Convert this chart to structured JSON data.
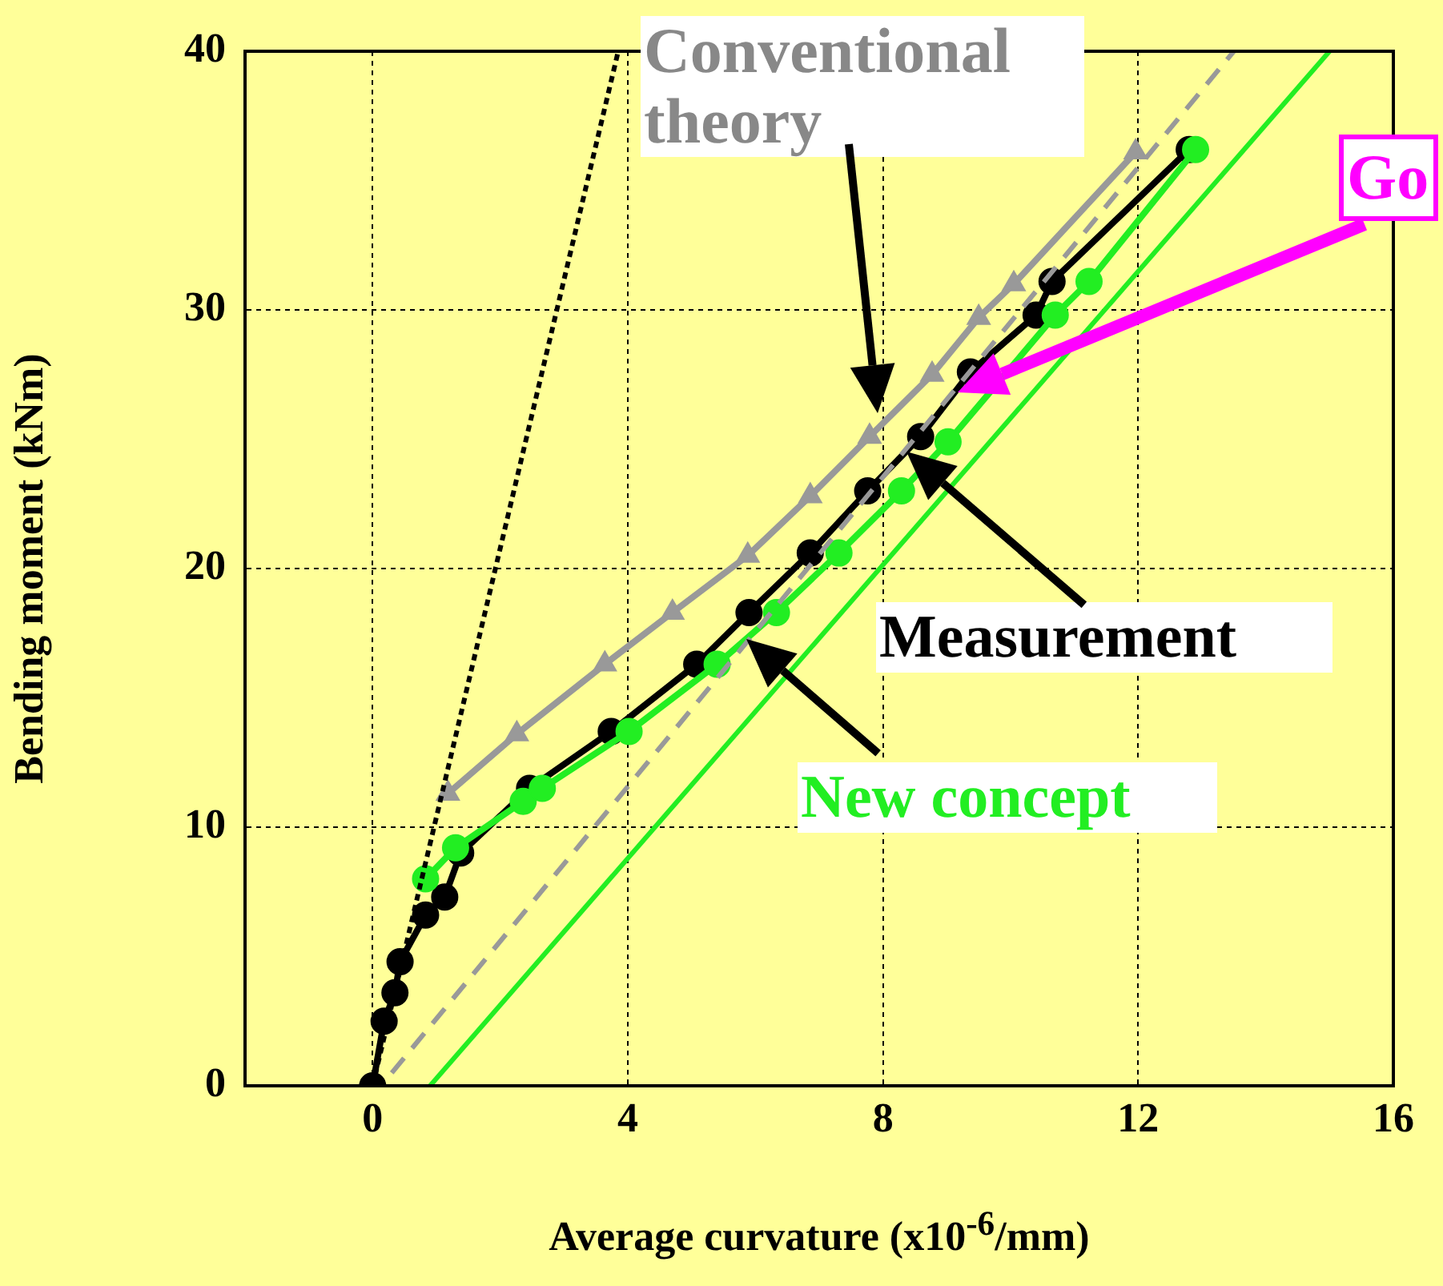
{
  "chart_data": {
    "type": "line",
    "ylabel": "Bending moment (kNm)",
    "xlabel": "Average curvature (x10$^{-6}$/mm)",
    "xlim": [
      -2,
      16
    ],
    "xticks": [
      0,
      4,
      8,
      12,
      16
    ],
    "ylim": [
      0,
      40
    ],
    "yticks": [
      0,
      10,
      20,
      30,
      40
    ],
    "grid": true,
    "annotations": [
      "Conventional theory",
      {
        "text": "Measurement",
        "x": 8.37,
        "y": 24.5
      },
      {
        "text": "New concept",
        "x": 5.85,
        "y": 17.3
      },
      "Go"
    ],
    "series": [
      {
        "color": "#000000",
        "line_style": "dotted",
        "x": [
          0,
          3.85
        ],
        "values": [
          0,
          40
        ]
      },
      {
        "color": "#999999",
        "line_style": "dashed",
        "x": [
          0.3,
          13.5
        ],
        "values": [
          0.5,
          40
        ]
      },
      {
        "color": "#22ee22",
        "line_style": "solid",
        "x": [
          0.9,
          15.0
        ],
        "values": [
          0,
          40
        ]
      },
      {
        "color": "#999999",
        "line_style": "solid",
        "marker": "triangle",
        "x": [
          1.18,
          2.26,
          3.64,
          4.7,
          5.88,
          6.86,
          7.79,
          8.77,
          9.5,
          10.05,
          11.96
        ],
        "values": [
          11.3,
          13.6,
          16.3,
          18.3,
          20.5,
          22.8,
          25.1,
          27.5,
          29.7,
          31.0,
          36.1
        ]
      },
      {
        "color": "#22ee22",
        "line_style": "solid",
        "marker": "circle",
        "x": [
          0.83,
          1.3,
          2.36,
          2.66,
          4.02,
          5.4,
          6.33,
          7.31,
          8.29,
          9.02,
          10.7,
          11.23,
          12.9
        ],
        "values": [
          8.0,
          9.2,
          11.0,
          11.5,
          13.7,
          16.3,
          18.3,
          20.6,
          23.0,
          24.9,
          29.8,
          31.1,
          36.2
        ]
      },
      {
        "color": "#000000",
        "line_style": "solid",
        "marker": "circle",
        "x": [
          0,
          0.18,
          0.35,
          0.43,
          0.83,
          1.13,
          1.38,
          2.46,
          3.74,
          5.08,
          5.9,
          6.86,
          7.76,
          8.59,
          9.37,
          10.4,
          10.65,
          12.8
        ],
        "values": [
          0,
          2.5,
          3.6,
          4.8,
          6.6,
          7.3,
          9.0,
          11.5,
          13.7,
          16.3,
          18.3,
          20.6,
          23.0,
          25.1,
          27.6,
          29.8,
          31.1,
          36.2
        ]
      }
    ]
  }
}
